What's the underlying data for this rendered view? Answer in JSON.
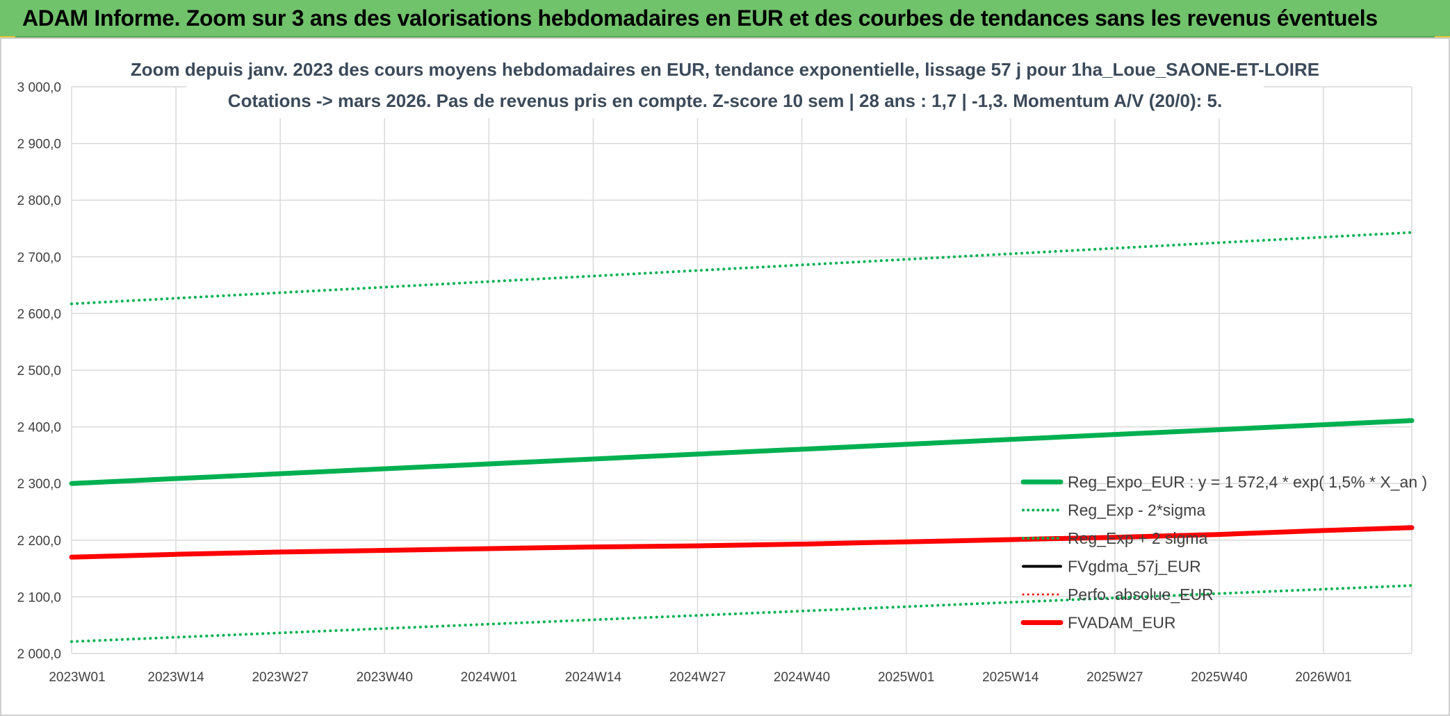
{
  "banner": {
    "title": "ADAM Informe. Zoom sur 3 ans des valorisations hebdomadaires en EUR et des courbes de tendances sans les revenus éventuels"
  },
  "chart_data": {
    "type": "line",
    "title_line1": "Zoom depuis janv. 2023 des cours moyens hebdomadaires en EUR, tendance exponentielle, lissage 57 j pour 1ha_Loue_SAONE-ET-LOIRE",
    "title_line2": "Cotations -> mars 2026. Pas de revenus pris en compte. Z-score 10 sem | 28 ans : 1,7 | -1,3. Momentum A/V (20/0): 5.",
    "x_ticks": [
      "2023W01",
      "2023W14",
      "2023W27",
      "2023W40",
      "2024W01",
      "2024W14",
      "2024W27",
      "2024W40",
      "2025W01",
      "2025W14",
      "2025W27",
      "2025W40",
      "2026W01"
    ],
    "x_range_weeks": [
      0,
      167
    ],
    "ylim": [
      2000,
      3000
    ],
    "y_ticks": [
      2000,
      2100,
      2200,
      2300,
      2400,
      2500,
      2600,
      2700,
      2800,
      2900,
      3000
    ],
    "y_tick_labels": [
      "2 000,0",
      "2 100,0",
      "2 200,0",
      "2 300,0",
      "2 400,0",
      "2 500,0",
      "2 600,0",
      "2 700,0",
      "2 800,0",
      "2 900,0",
      "3 000,0"
    ],
    "grid": true,
    "legend_position": "right-bottom",
    "series": [
      {
        "name": "Reg_Expo_EUR : y = 1 572,4 * exp( 1,5% *  X_an )",
        "color": "#00b050",
        "style": "solid",
        "width": 7,
        "x": [
          0,
          167
        ],
        "y": [
          2300,
          2411
        ]
      },
      {
        "name": "Reg_Exp - 2*sigma",
        "color": "#00b050",
        "style": "dotted",
        "width": 4,
        "x": [
          0,
          167
        ],
        "y": [
          2021,
          2120
        ]
      },
      {
        "name": "Reg_Exp + 2 sigma",
        "color": "#00b050",
        "style": "dotted",
        "width": 4,
        "x": [
          0,
          167
        ],
        "y": [
          2617,
          2743
        ]
      },
      {
        "name": "FVgdma_57j_EUR",
        "color": "#000000",
        "style": "solid",
        "width": 4,
        "x": [],
        "y": []
      },
      {
        "name": "Perfo. absolue_EUR",
        "color": "#ff0000",
        "style": "dotted",
        "width": 3,
        "x": [],
        "y": []
      },
      {
        "name": "FVADAM_EUR",
        "color": "#ff0000",
        "style": "solid",
        "width": 7,
        "x": [
          0,
          13,
          26,
          39,
          52,
          65,
          78,
          91,
          104,
          117,
          130,
          143,
          156,
          167
        ],
        "y": [
          2170,
          2175,
          2179,
          2182,
          2185,
          2188,
          2190,
          2193,
          2197,
          2201,
          2205,
          2210,
          2217,
          2222
        ]
      }
    ]
  }
}
